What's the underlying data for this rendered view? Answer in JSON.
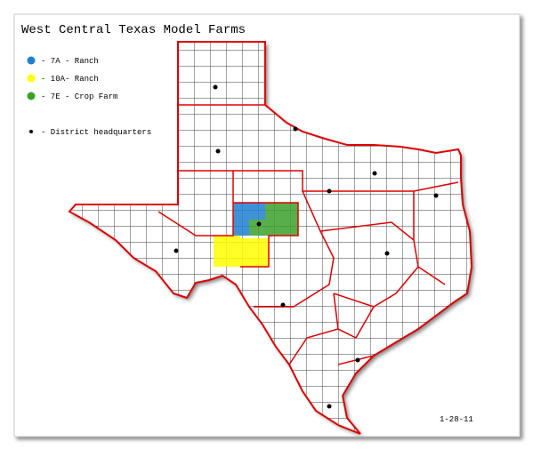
{
  "title": "West Central Texas Model Farms",
  "legend": [
    {
      "label": "- 7A - Ranch",
      "color": "#1f7fcf"
    },
    {
      "label": "- 10A- Ranch",
      "color": "#ffff00"
    },
    {
      "label": "- 7E - Crop Farm",
      "color": "#3aa02a"
    },
    {
      "label": "- District headquarters",
      "color": "#000000"
    }
  ],
  "date": "1-28-11"
}
